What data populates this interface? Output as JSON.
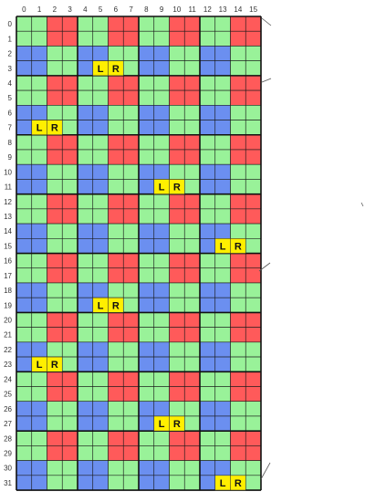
{
  "grid": {
    "columns": [
      "0",
      "1",
      "2",
      "3",
      "4",
      "5",
      "6",
      "7",
      "8",
      "9",
      "10",
      "11",
      "12",
      "13",
      "14",
      "15"
    ],
    "rows": [
      "0",
      "1",
      "2",
      "3",
      "4",
      "5",
      "6",
      "7",
      "8",
      "9",
      "10",
      "11",
      "12",
      "13",
      "14",
      "15",
      "16",
      "17",
      "18",
      "19",
      "20",
      "21",
      "22",
      "23",
      "24",
      "25",
      "26",
      "27",
      "28",
      "29",
      "30",
      "31"
    ],
    "colors": {
      "red": "#ff5a5a",
      "green": "#99f299",
      "blue": "#6b8ff0",
      "yellow": "#ffef00"
    }
  },
  "lr_markers": [
    {
      "row": 3,
      "col": 5,
      "left": "L",
      "right": "R"
    },
    {
      "row": 7,
      "col": 1,
      "left": "L",
      "right": "R"
    },
    {
      "row": 11,
      "col": 9,
      "left": "L",
      "right": "R"
    },
    {
      "row": 15,
      "col": 13,
      "left": "L",
      "right": "R"
    },
    {
      "row": 19,
      "col": 5,
      "left": "L",
      "right": "R"
    },
    {
      "row": 23,
      "col": 1,
      "left": "L",
      "right": "R"
    },
    {
      "row": 27,
      "col": 9,
      "left": "L",
      "right": "R"
    },
    {
      "row": 31,
      "col": 13,
      "left": "L",
      "right": "R"
    }
  ]
}
